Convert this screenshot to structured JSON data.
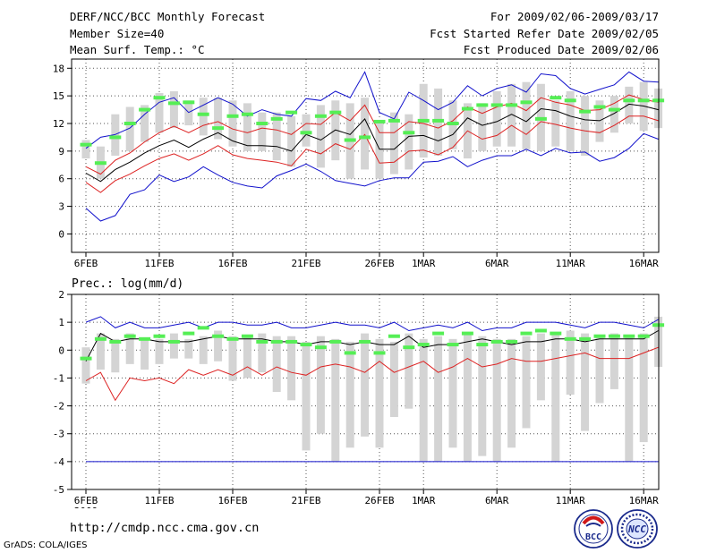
{
  "header": {
    "title": "DERF/NCC/BCC Monthly Forecast",
    "member_size": "Member Size=40",
    "variable_temp": "Mean Surf. Temp.: °C",
    "period": "For 2009/02/06-2009/03/17",
    "started": "Fcst Started Refer Date 2009/02/05",
    "produced": "Fcst Produced Date 2009/02/06"
  },
  "footer": {
    "url": "http://cmdp.ncc.cma.gov.cn",
    "grads": "GrADS: COLA/IGES",
    "logo_bcc": "BCC",
    "logo_ncc": "NCC"
  },
  "colors": {
    "box": "#d4d4d4",
    "median": "#55ee55",
    "mean": "#000000",
    "inner": "#dd2222",
    "outer": "#1111cc",
    "grid": "#555555",
    "baseline": "#1111cc"
  },
  "chart_data": [
    {
      "type": "line",
      "title": "Mean Surf. Temp.: °C",
      "x": "days 1-40 (2009/02/06 to 2009/03/17)",
      "xticks": [
        "6FEB",
        "11FEB",
        "16FEB",
        "21FEB",
        "26FEB",
        "1MAR",
        "6MAR",
        "11MAR",
        "16MAR"
      ],
      "xtick_days": [
        1,
        6,
        11,
        16,
        21,
        24,
        29,
        34,
        39
      ],
      "year_label": "2009",
      "ylim": [
        -2,
        19
      ],
      "yticks": [
        0,
        3,
        6,
        9,
        12,
        15,
        18
      ],
      "series": [
        {
          "name": "max",
          "values": [
            9.3,
            10.5,
            10.8,
            11.5,
            13.0,
            14.3,
            14.8,
            13.2,
            14.0,
            14.8,
            14.1,
            12.8,
            13.5,
            13.0,
            12.8,
            14.7,
            14.5,
            15.5,
            14.8,
            17.6,
            13.2,
            12.5,
            15.4,
            14.5,
            13.5,
            14.3,
            16.1,
            15.0,
            15.8,
            16.2,
            15.4,
            17.4,
            17.2,
            15.8,
            15.2,
            15.7,
            16.2,
            17.6,
            16.6,
            16.5
          ]
        },
        {
          "name": "upper",
          "values": [
            7.3,
            6.5,
            8.0,
            8.8,
            10.0,
            11.0,
            11.7,
            11.0,
            11.8,
            12.2,
            11.4,
            11.0,
            11.5,
            11.3,
            10.8,
            12.0,
            11.9,
            13.2,
            12.3,
            14.0,
            11.0,
            11.0,
            12.2,
            12.0,
            11.5,
            12.3,
            13.8,
            13.1,
            13.8,
            14.2,
            13.4,
            14.8,
            14.3,
            14.0,
            13.4,
            13.5,
            14.2,
            15.1,
            14.6,
            14.3
          ]
        },
        {
          "name": "mean",
          "values": [
            6.6,
            5.7,
            7.0,
            7.8,
            8.8,
            9.6,
            10.2,
            9.4,
            10.3,
            11.0,
            10.1,
            9.6,
            9.6,
            9.5,
            9.0,
            10.8,
            10.2,
            11.3,
            10.8,
            12.5,
            9.2,
            9.2,
            10.6,
            10.7,
            10.1,
            10.8,
            12.6,
            11.8,
            12.2,
            13.0,
            12.2,
            13.6,
            13.4,
            12.8,
            12.4,
            12.3,
            13.1,
            14.1,
            13.9,
            13.5
          ]
        },
        {
          "name": "lower",
          "values": [
            5.6,
            4.5,
            5.8,
            6.5,
            7.4,
            8.2,
            8.7,
            8.0,
            8.7,
            9.6,
            8.6,
            8.2,
            8.0,
            7.8,
            7.4,
            9.2,
            8.7,
            9.8,
            9.2,
            10.8,
            7.7,
            7.8,
            9.0,
            9.1,
            8.6,
            9.4,
            11.2,
            10.3,
            10.7,
            11.8,
            10.8,
            12.2,
            11.9,
            11.5,
            11.2,
            11.0,
            11.8,
            12.8,
            12.8,
            12.3
          ]
        },
        {
          "name": "min",
          "values": [
            2.8,
            1.4,
            2.0,
            4.3,
            4.8,
            6.4,
            5.7,
            6.2,
            7.3,
            6.4,
            5.6,
            5.2,
            5.0,
            6.3,
            6.9,
            7.6,
            6.8,
            5.8,
            5.5,
            5.2,
            5.8,
            6.1,
            6.1,
            7.8,
            7.9,
            8.4,
            7.3,
            8.0,
            8.5,
            8.5,
            9.2,
            8.5,
            9.3,
            8.8,
            8.9,
            7.9,
            8.3,
            9.3,
            10.9,
            10.3
          ]
        },
        {
          "name": "box_low",
          "values": [
            8.2,
            6.0,
            8.5,
            9.0,
            10.0,
            11.0,
            11.5,
            11.8,
            10.7,
            10.3,
            9.5,
            9.0,
            9.0,
            8.0,
            7.3,
            9.5,
            7.2,
            8.0,
            6.0,
            7.0,
            6.0,
            6.5,
            7.0,
            8.3,
            8.5,
            9.2,
            8.2,
            9.0,
            9.5,
            9.5,
            9.2,
            9.0,
            9.5,
            9.0,
            8.5,
            10.0,
            11.0,
            12.0,
            11.2,
            11.5
          ]
        },
        {
          "name": "box_high",
          "values": [
            10.2,
            9.5,
            13.0,
            13.8,
            14.0,
            15.3,
            15.5,
            14.5,
            14.8,
            14.8,
            14.5,
            14.2,
            13.2,
            13.2,
            12.8,
            13.0,
            14.0,
            14.5,
            14.2,
            14.8,
            12.2,
            13.2,
            13.0,
            16.3,
            15.8,
            14.5,
            14.2,
            14.2,
            15.5,
            16.3,
            16.5,
            16.3,
            14.5,
            15.5,
            15.0,
            14.5,
            15.0,
            16.0,
            16.5,
            15.8
          ]
        },
        {
          "name": "median",
          "values": [
            9.7,
            7.7,
            10.5,
            12.0,
            13.5,
            14.8,
            14.2,
            14.3,
            13.0,
            11.5,
            12.8,
            13.0,
            12.0,
            12.5,
            13.2,
            11.0,
            12.8,
            13.2,
            10.2,
            10.5,
            12.2,
            12.3,
            11.0,
            12.3,
            12.3,
            12.0,
            13.6,
            14.0,
            14.0,
            14.0,
            14.3,
            12.5,
            14.8,
            14.5,
            13.3,
            13.8,
            13.5,
            14.5,
            14.5,
            14.5
          ]
        }
      ]
    },
    {
      "type": "line",
      "title": "Prec.: log(mm/d)",
      "x": "days 1-40 (2009/02/06 to 2009/03/17)",
      "xticks": [
        "6FEB",
        "11FEB",
        "16FEB",
        "21FEB",
        "26FEB",
        "1MAR",
        "6MAR",
        "11MAR",
        "16MAR"
      ],
      "xtick_days": [
        1,
        6,
        11,
        16,
        21,
        24,
        29,
        34,
        39
      ],
      "year_label": "2009",
      "ylim": [
        -5,
        2
      ],
      "yticks": [
        -5,
        -4,
        -3,
        -2,
        -1,
        0,
        1,
        2
      ],
      "baseline": -4,
      "series": [
        {
          "name": "max",
          "values": [
            1.0,
            1.2,
            0.8,
            1.0,
            0.8,
            0.8,
            0.9,
            1.0,
            0.8,
            1.0,
            1.0,
            0.9,
            0.9,
            1.0,
            0.8,
            0.8,
            0.9,
            1.0,
            0.9,
            0.9,
            0.8,
            1.0,
            0.7,
            0.8,
            0.9,
            0.8,
            1.0,
            0.7,
            0.8,
            0.8,
            1.0,
            1.0,
            1.0,
            0.9,
            0.8,
            1.0,
            1.0,
            0.9,
            0.8,
            1.1
          ]
        },
        {
          "name": "mean",
          "values": [
            -0.4,
            0.6,
            0.3,
            0.4,
            0.4,
            0.3,
            0.3,
            0.3,
            0.4,
            0.5,
            0.4,
            0.4,
            0.4,
            0.3,
            0.3,
            0.2,
            0.3,
            0.3,
            0.2,
            0.3,
            0.2,
            0.2,
            0.5,
            0.1,
            0.2,
            0.2,
            0.3,
            0.4,
            0.3,
            0.2,
            0.3,
            0.3,
            0.4,
            0.4,
            0.3,
            0.4,
            0.4,
            0.4,
            0.4,
            0.7
          ]
        },
        {
          "name": "lower",
          "values": [
            -1.1,
            -0.8,
            -1.8,
            -1.0,
            -1.1,
            -1.0,
            -1.2,
            -0.7,
            -0.9,
            -0.7,
            -0.9,
            -0.6,
            -0.9,
            -0.6,
            -0.8,
            -0.9,
            -0.6,
            -0.5,
            -0.6,
            -0.8,
            -0.4,
            -0.8,
            -0.6,
            -0.4,
            -0.8,
            -0.6,
            -0.3,
            -0.6,
            -0.5,
            -0.3,
            -0.4,
            -0.4,
            -0.3,
            -0.2,
            -0.1,
            -0.3,
            -0.3,
            -0.3,
            -0.1,
            0.1
          ]
        },
        {
          "name": "box_low",
          "values": [
            -1.2,
            -0.7,
            -0.8,
            -0.5,
            -0.7,
            -0.5,
            -0.3,
            -0.3,
            -0.5,
            -0.4,
            -1.1,
            -1.0,
            -0.8,
            -1.5,
            -1.8,
            -3.6,
            -3.0,
            -4.0,
            -3.5,
            -3.1,
            -3.5,
            -2.4,
            -2.1,
            -4.0,
            -4.0,
            -3.5,
            -4.0,
            -3.8,
            -4.0,
            -3.5,
            -2.8,
            -1.8,
            -4.0,
            -1.6,
            -2.9,
            -1.9,
            -1.4,
            -4.0,
            -3.3,
            -0.6
          ]
        },
        {
          "name": "box_high",
          "values": [
            0.1,
            0.6,
            0.4,
            0.6,
            0.4,
            0.4,
            0.6,
            0.4,
            0.5,
            0.7,
            0.5,
            0.5,
            0.6,
            0.5,
            0.5,
            0.3,
            0.5,
            0.4,
            0.3,
            0.6,
            0.4,
            0.3,
            0.6,
            0.4,
            0.5,
            0.4,
            0.6,
            0.5,
            0.4,
            0.4,
            0.5,
            0.6,
            0.6,
            0.7,
            0.6,
            0.5,
            0.6,
            0.5,
            0.6,
            1.2
          ]
        },
        {
          "name": "median",
          "values": [
            -0.3,
            0.4,
            0.3,
            0.5,
            0.4,
            0.5,
            0.3,
            0.6,
            0.8,
            0.5,
            0.4,
            0.5,
            0.3,
            0.3,
            0.3,
            0.2,
            0.1,
            0.3,
            -0.1,
            0.3,
            -0.1,
            0.5,
            0.1,
            0.2,
            0.6,
            0.2,
            0.6,
            0.2,
            0.3,
            0.3,
            0.6,
            0.7,
            0.6,
            0.4,
            0.4,
            0.5,
            0.5,
            0.5,
            0.5,
            0.9
          ]
        }
      ]
    }
  ]
}
